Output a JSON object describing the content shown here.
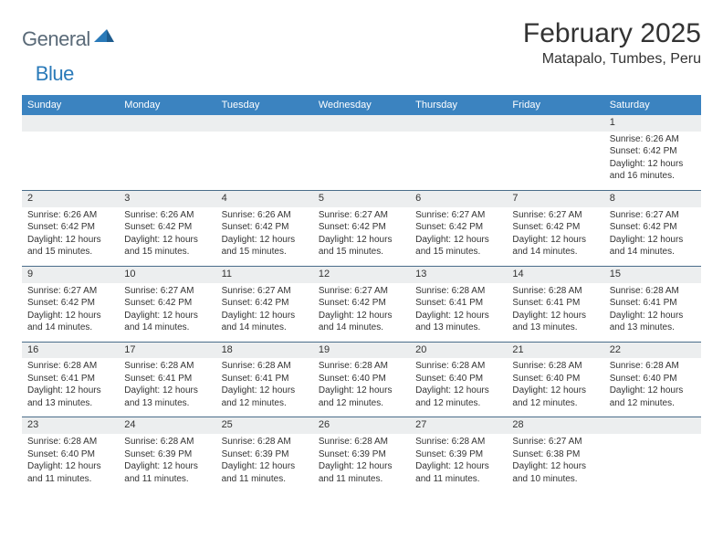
{
  "logo": {
    "text1": "General",
    "text2": "Blue"
  },
  "header": {
    "month_title": "February 2025",
    "location": "Matapalo, Tumbes, Peru"
  },
  "colors": {
    "header_bar": "#3b83c0",
    "daynum_bg": "#eceeef",
    "week_border": "#4a6d8a",
    "text": "#333333"
  },
  "weekdays": [
    "Sunday",
    "Monday",
    "Tuesday",
    "Wednesday",
    "Thursday",
    "Friday",
    "Saturday"
  ],
  "weeks": [
    [
      {
        "n": "",
        "sr": "",
        "ss": "",
        "dl": ""
      },
      {
        "n": "",
        "sr": "",
        "ss": "",
        "dl": ""
      },
      {
        "n": "",
        "sr": "",
        "ss": "",
        "dl": ""
      },
      {
        "n": "",
        "sr": "",
        "ss": "",
        "dl": ""
      },
      {
        "n": "",
        "sr": "",
        "ss": "",
        "dl": ""
      },
      {
        "n": "",
        "sr": "",
        "ss": "",
        "dl": ""
      },
      {
        "n": "1",
        "sr": "Sunrise: 6:26 AM",
        "ss": "Sunset: 6:42 PM",
        "dl": "Daylight: 12 hours and 16 minutes."
      }
    ],
    [
      {
        "n": "2",
        "sr": "Sunrise: 6:26 AM",
        "ss": "Sunset: 6:42 PM",
        "dl": "Daylight: 12 hours and 15 minutes."
      },
      {
        "n": "3",
        "sr": "Sunrise: 6:26 AM",
        "ss": "Sunset: 6:42 PM",
        "dl": "Daylight: 12 hours and 15 minutes."
      },
      {
        "n": "4",
        "sr": "Sunrise: 6:26 AM",
        "ss": "Sunset: 6:42 PM",
        "dl": "Daylight: 12 hours and 15 minutes."
      },
      {
        "n": "5",
        "sr": "Sunrise: 6:27 AM",
        "ss": "Sunset: 6:42 PM",
        "dl": "Daylight: 12 hours and 15 minutes."
      },
      {
        "n": "6",
        "sr": "Sunrise: 6:27 AM",
        "ss": "Sunset: 6:42 PM",
        "dl": "Daylight: 12 hours and 15 minutes."
      },
      {
        "n": "7",
        "sr": "Sunrise: 6:27 AM",
        "ss": "Sunset: 6:42 PM",
        "dl": "Daylight: 12 hours and 14 minutes."
      },
      {
        "n": "8",
        "sr": "Sunrise: 6:27 AM",
        "ss": "Sunset: 6:42 PM",
        "dl": "Daylight: 12 hours and 14 minutes."
      }
    ],
    [
      {
        "n": "9",
        "sr": "Sunrise: 6:27 AM",
        "ss": "Sunset: 6:42 PM",
        "dl": "Daylight: 12 hours and 14 minutes."
      },
      {
        "n": "10",
        "sr": "Sunrise: 6:27 AM",
        "ss": "Sunset: 6:42 PM",
        "dl": "Daylight: 12 hours and 14 minutes."
      },
      {
        "n": "11",
        "sr": "Sunrise: 6:27 AM",
        "ss": "Sunset: 6:42 PM",
        "dl": "Daylight: 12 hours and 14 minutes."
      },
      {
        "n": "12",
        "sr": "Sunrise: 6:27 AM",
        "ss": "Sunset: 6:42 PM",
        "dl": "Daylight: 12 hours and 14 minutes."
      },
      {
        "n": "13",
        "sr": "Sunrise: 6:28 AM",
        "ss": "Sunset: 6:41 PM",
        "dl": "Daylight: 12 hours and 13 minutes."
      },
      {
        "n": "14",
        "sr": "Sunrise: 6:28 AM",
        "ss": "Sunset: 6:41 PM",
        "dl": "Daylight: 12 hours and 13 minutes."
      },
      {
        "n": "15",
        "sr": "Sunrise: 6:28 AM",
        "ss": "Sunset: 6:41 PM",
        "dl": "Daylight: 12 hours and 13 minutes."
      }
    ],
    [
      {
        "n": "16",
        "sr": "Sunrise: 6:28 AM",
        "ss": "Sunset: 6:41 PM",
        "dl": "Daylight: 12 hours and 13 minutes."
      },
      {
        "n": "17",
        "sr": "Sunrise: 6:28 AM",
        "ss": "Sunset: 6:41 PM",
        "dl": "Daylight: 12 hours and 13 minutes."
      },
      {
        "n": "18",
        "sr": "Sunrise: 6:28 AM",
        "ss": "Sunset: 6:41 PM",
        "dl": "Daylight: 12 hours and 12 minutes."
      },
      {
        "n": "19",
        "sr": "Sunrise: 6:28 AM",
        "ss": "Sunset: 6:40 PM",
        "dl": "Daylight: 12 hours and 12 minutes."
      },
      {
        "n": "20",
        "sr": "Sunrise: 6:28 AM",
        "ss": "Sunset: 6:40 PM",
        "dl": "Daylight: 12 hours and 12 minutes."
      },
      {
        "n": "21",
        "sr": "Sunrise: 6:28 AM",
        "ss": "Sunset: 6:40 PM",
        "dl": "Daylight: 12 hours and 12 minutes."
      },
      {
        "n": "22",
        "sr": "Sunrise: 6:28 AM",
        "ss": "Sunset: 6:40 PM",
        "dl": "Daylight: 12 hours and 12 minutes."
      }
    ],
    [
      {
        "n": "23",
        "sr": "Sunrise: 6:28 AM",
        "ss": "Sunset: 6:40 PM",
        "dl": "Daylight: 12 hours and 11 minutes."
      },
      {
        "n": "24",
        "sr": "Sunrise: 6:28 AM",
        "ss": "Sunset: 6:39 PM",
        "dl": "Daylight: 12 hours and 11 minutes."
      },
      {
        "n": "25",
        "sr": "Sunrise: 6:28 AM",
        "ss": "Sunset: 6:39 PM",
        "dl": "Daylight: 12 hours and 11 minutes."
      },
      {
        "n": "26",
        "sr": "Sunrise: 6:28 AM",
        "ss": "Sunset: 6:39 PM",
        "dl": "Daylight: 12 hours and 11 minutes."
      },
      {
        "n": "27",
        "sr": "Sunrise: 6:28 AM",
        "ss": "Sunset: 6:39 PM",
        "dl": "Daylight: 12 hours and 11 minutes."
      },
      {
        "n": "28",
        "sr": "Sunrise: 6:27 AM",
        "ss": "Sunset: 6:38 PM",
        "dl": "Daylight: 12 hours and 10 minutes."
      },
      {
        "n": "",
        "sr": "",
        "ss": "",
        "dl": ""
      }
    ]
  ]
}
